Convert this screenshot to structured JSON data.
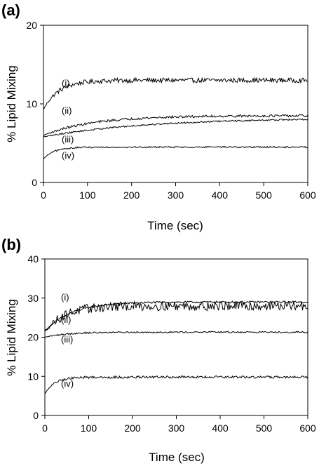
{
  "chart_data": [
    {
      "type": "line",
      "panel_label": "(a)",
      "xlabel": "Time (sec)",
      "ylabel": "% Lipid Mixing",
      "xlim": [
        0,
        600
      ],
      "ylim": [
        0,
        20
      ],
      "xticks": [
        0,
        100,
        200,
        300,
        400,
        500,
        600
      ],
      "yticks": [
        0,
        10,
        20
      ],
      "grid": false,
      "series": [
        {
          "name": "(i)",
          "start": 9.3,
          "plateau": 13.0,
          "tau": 35,
          "noise": 0.3
        },
        {
          "name": "(ii)",
          "start": 6.0,
          "plateau": 8.5,
          "tau": 110,
          "noise": 0.15
        },
        {
          "name": "(iii)",
          "start": 5.8,
          "plateau": 8.2,
          "tau": 230,
          "noise": 0.1
        },
        {
          "name": "(iv)",
          "start": 3.0,
          "plateau": 4.5,
          "tau": 25,
          "noise": 0.1
        }
      ]
    },
    {
      "type": "line",
      "panel_label": "(b)",
      "xlabel": "Time (sec)",
      "ylabel": "% Lipid Mixing",
      "xlim": [
        0,
        600
      ],
      "ylim": [
        0,
        40
      ],
      "xticks": [
        0,
        100,
        200,
        300,
        400,
        500,
        600
      ],
      "yticks": [
        0,
        10,
        20,
        30,
        40
      ],
      "grid": false,
      "series": [
        {
          "name": "(i)",
          "start": 21.5,
          "plateau": 29.0,
          "tau": 60,
          "noise": 0.25
        },
        {
          "name": "(ii)",
          "start": 21.5,
          "plateau": 28.0,
          "tau": 45,
          "noise": 1.2
        },
        {
          "name": "(iii)",
          "start": 20.0,
          "plateau": 21.3,
          "tau": 50,
          "noise": 0.2
        },
        {
          "name": "(iv)",
          "start": 5.5,
          "plateau": 9.8,
          "tau": 22,
          "noise": 0.3
        }
      ]
    }
  ]
}
